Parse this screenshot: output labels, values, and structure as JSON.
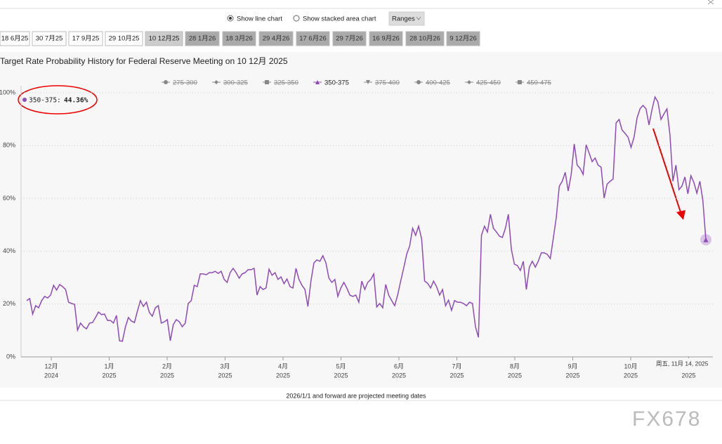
{
  "controls": {
    "options": [
      "Show line chart",
      "Show stacked area chart"
    ],
    "selected": 0,
    "ranges": "Ranges"
  },
  "tabs": {
    "items": [
      "18 6月25",
      "30 7月25",
      "17 9月25",
      "29 10月25",
      "10 12月25",
      "28 1月26",
      "18 3月26",
      "29 4月26",
      "17 6月26",
      "29 7月26",
      "16 9月26",
      "28 10月26",
      "9 12月26"
    ],
    "active": 4
  },
  "chart_data": {
    "type": "line",
    "title": "Target Rate Probability History for Federal Reserve Meeting on 10 12月 2025",
    "legend": [
      {
        "name": "275-300",
        "marker": "circle",
        "hidden": true
      },
      {
        "name": "300-325",
        "marker": "diamond",
        "hidden": true
      },
      {
        "name": "325-350",
        "marker": "square",
        "hidden": true
      },
      {
        "name": "350-375",
        "marker": "triangle",
        "hidden": false
      },
      {
        "name": "375-400",
        "marker": "triangle-down",
        "hidden": true
      },
      {
        "name": "400-425",
        "marker": "circle",
        "hidden": true
      },
      {
        "name": "425-450",
        "marker": "diamond",
        "hidden": true
      },
      {
        "name": "450-475",
        "marker": "square",
        "hidden": true
      }
    ],
    "series": [
      {
        "name": "350-375",
        "color": "#8e4bb5",
        "values": [
          21.3,
          22.1,
          16.2,
          19.4,
          18.6,
          21.3,
          22.9,
          22.3,
          23.4,
          27.1,
          25.3,
          27.4,
          26.6,
          25.5,
          20.7,
          20.2,
          19.9,
          10.1,
          12.8,
          11.4,
          10.6,
          12.8,
          13.0,
          14.9,
          17.0,
          16.0,
          16.2,
          13.8,
          13.8,
          12.8,
          15.7,
          6.1,
          5.9,
          11.4,
          14.9,
          13.6,
          13.0,
          17.3,
          21.3,
          19.1,
          20.7,
          16.8,
          15.4,
          18.6,
          19.4,
          12.8,
          13.3,
          14.1,
          6.1,
          12.2,
          14.1,
          13.3,
          11.4,
          12.8,
          20.2,
          21.3,
          27.1,
          26.6,
          31.4,
          31.4,
          31.1,
          31.9,
          31.9,
          32.4,
          31.6,
          32.4,
          29.3,
          28.2,
          31.9,
          33.5,
          31.9,
          29.8,
          31.4,
          31.9,
          33.0,
          33.0,
          33.5,
          23.4,
          26.6,
          25.5,
          26.1,
          33.2,
          30.9,
          31.9,
          29.3,
          30.3,
          27.7,
          29.5,
          26.6,
          26.1,
          33.5,
          29.3,
          27.1,
          25.5,
          19.1,
          28.7,
          35.6,
          36.7,
          36.2,
          38.3,
          35.6,
          29.8,
          28.2,
          29.3,
          22.9,
          26.1,
          28.2,
          26.1,
          23.4,
          22.9,
          23.4,
          20.7,
          28.7,
          25.5,
          28.2,
          29.3,
          31.4,
          18.9,
          20.2,
          18.6,
          27.4,
          23.4,
          21.3,
          19.4,
          23.4,
          28.7,
          33.5,
          38.8,
          42.0,
          48.7,
          46.0,
          49.5,
          44.7,
          28.7,
          27.9,
          26.1,
          28.7,
          26.6,
          23.4,
          25.5,
          19.4,
          21.5,
          17.6,
          21.3,
          20.7,
          20.7,
          20.2,
          19.4,
          20.7,
          20.2,
          11.4,
          7.4,
          46.0,
          49.5,
          47.3,
          54.0,
          48.7,
          47.3,
          45.7,
          45.2,
          48.7,
          54.0,
          40.7,
          35.1,
          34.6,
          32.7,
          36.2,
          25.5,
          34.0,
          36.2,
          34.0,
          36.2,
          39.4,
          39.4,
          38.8,
          37.2,
          44.7,
          52.7,
          64.6,
          66.5,
          69.9,
          62.8,
          69.1,
          80.6,
          72.6,
          71.3,
          69.1,
          80.3,
          77.1,
          73.9,
          75.3,
          72.6,
          71.8,
          60.1,
          65.4,
          66.5,
          67.3,
          88.6,
          89.9,
          85.9,
          84.6,
          83.2,
          79.3,
          83.2,
          90.4,
          93.9,
          95.2,
          93.9,
          87.8,
          93.6,
          98.4,
          96.5,
          89.9,
          92.0,
          93.9,
          84.0,
          66.5,
          72.6,
          63.3,
          64.6,
          68.1,
          61.7,
          68.6,
          66.0,
          62.0,
          66.5,
          59.3,
          44.36
        ]
      }
    ],
    "ylim": [
      0,
      100
    ],
    "yticks": [
      {
        "value": 0,
        "label": "0%"
      },
      {
        "value": 20,
        "label": "20%"
      },
      {
        "value": 40,
        "label": "40%"
      },
      {
        "value": 60,
        "label": "60%"
      },
      {
        "value": 80,
        "label": "80%"
      },
      {
        "value": 100,
        "label": "100%"
      }
    ],
    "x_labels": [
      {
        "month": "12月",
        "year": "2024"
      },
      {
        "month": "1月",
        "year": "2025"
      },
      {
        "month": "2月",
        "year": "2025"
      },
      {
        "month": "3月",
        "year": "2025"
      },
      {
        "month": "4月",
        "year": "2025"
      },
      {
        "month": "5月",
        "year": "2025"
      },
      {
        "month": "6月",
        "year": "2025"
      },
      {
        "month": "7月",
        "year": "2025"
      },
      {
        "month": "8月",
        "year": "2025"
      },
      {
        "month": "9月",
        "year": "2025"
      },
      {
        "month": "10月",
        "year": "2025"
      },
      {
        "month": null,
        "year": "2025"
      }
    ],
    "grid": true,
    "tooltip": {
      "name": "350-375:",
      "value": "44.36%"
    },
    "crosshair_label": "周五, 11月 14, 2025",
    "note": "2026/1/1 and forward are projected meeting dates"
  },
  "watermark": "FX678"
}
